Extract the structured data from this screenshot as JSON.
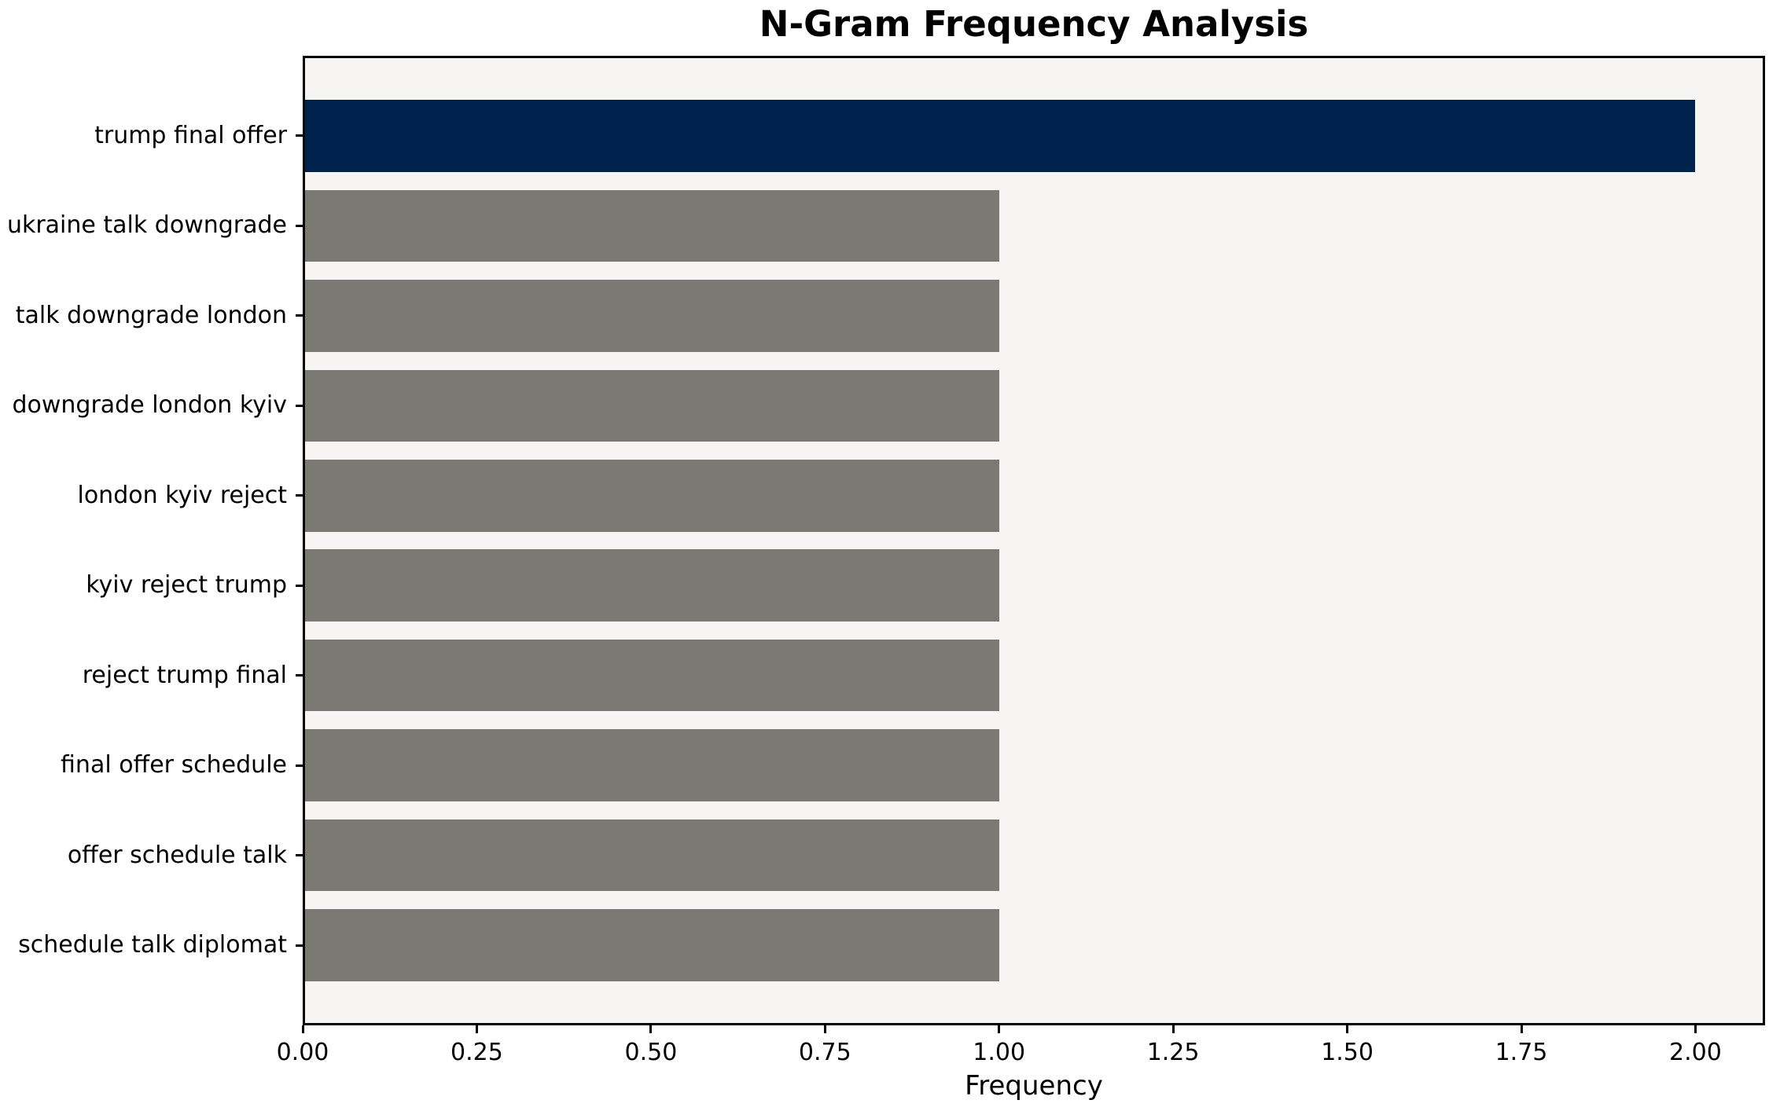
{
  "chart_data": {
    "type": "bar",
    "orientation": "horizontal",
    "title": "N-Gram Frequency Analysis",
    "xlabel": "Frequency",
    "ylabel": "",
    "categories": [
      "trump final offer",
      "ukraine talk downgrade",
      "talk downgrade london",
      "downgrade london kyiv",
      "london kyiv reject",
      "kyiv reject trump",
      "reject trump final",
      "final offer schedule",
      "offer schedule talk",
      "schedule talk diplomat"
    ],
    "values": [
      2,
      1,
      1,
      1,
      1,
      1,
      1,
      1,
      1,
      1
    ],
    "highlight_index": 0,
    "xlim": [
      0,
      2.1
    ],
    "xticks": [
      {
        "value": 0.0,
        "label": "0.00"
      },
      {
        "value": 0.25,
        "label": "0.25"
      },
      {
        "value": 0.5,
        "label": "0.50"
      },
      {
        "value": 0.75,
        "label": "0.75"
      },
      {
        "value": 1.0,
        "label": "1.00"
      },
      {
        "value": 1.25,
        "label": "1.25"
      },
      {
        "value": 1.5,
        "label": "1.50"
      },
      {
        "value": 1.75,
        "label": "1.75"
      },
      {
        "value": 2.0,
        "label": "2.00"
      }
    ],
    "bar_height_fraction": 0.8,
    "grid": false,
    "legend": "none",
    "colors": {
      "highlight_bar": "#00234e",
      "default_bar": "#7a7974",
      "plot_background": "#f6f5f4",
      "spine": "#000000",
      "text": "#000000"
    }
  }
}
